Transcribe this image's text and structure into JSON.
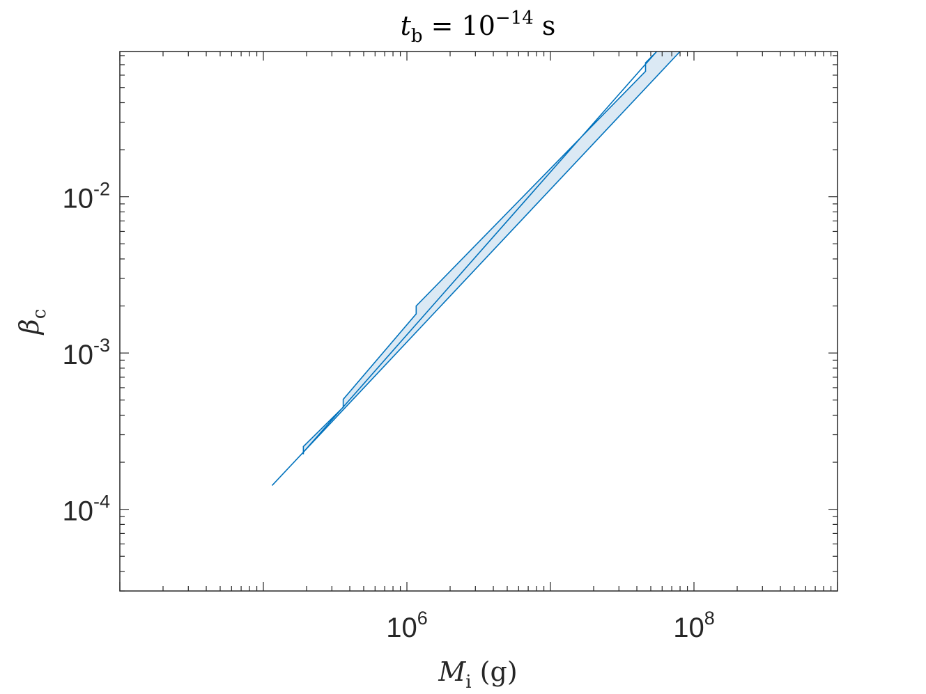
{
  "chart_data": {
    "type": "area",
    "title": {
      "var": "t",
      "sub": "b",
      "eq": " = 10",
      "sup": "−14",
      "unit": " s"
    },
    "xlabel": {
      "var": "M",
      "sub": "i",
      "unit": " (g)"
    },
    "ylabel": {
      "var": "β",
      "sub": "c"
    },
    "xscale": "log",
    "yscale": "log",
    "xlim": [
      10000,
      1000000000
    ],
    "ylim": [
      3e-05,
      0.085
    ],
    "x_ticks": [
      {
        "base": "10",
        "exp": "6",
        "value": 1000000
      },
      {
        "base": "10",
        "exp": "8",
        "value": 100000000
      }
    ],
    "y_ticks": [
      {
        "base": "10",
        "exp": "-4",
        "value": 0.0001
      },
      {
        "base": "10",
        "exp": "-3",
        "value": 0.001
      },
      {
        "base": "10",
        "exp": "-2",
        "value": 0.01
      }
    ],
    "grid": false,
    "series": [
      {
        "color": "#0072bd",
        "fill": "#dbe9f4",
        "lower": {
          "x": [
            115000,
            80000000
          ],
          "y": [
            0.000142,
            0.085
          ]
        },
        "upper": {
          "x": [
            190000,
            190000,
            360000,
            360000,
            1160000,
            1160000,
            46000000,
            46000000,
            55000000
          ],
          "y": [
            0.000225,
            0.000252,
            0.00045,
            0.000505,
            0.00178,
            0.002,
            0.0635,
            0.072,
            0.085
          ]
        }
      }
    ]
  }
}
